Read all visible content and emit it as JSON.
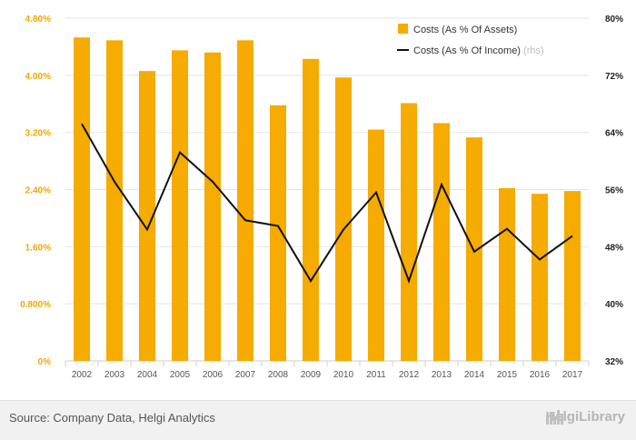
{
  "chart_data": {
    "type": "bar",
    "categories": [
      "2002",
      "2003",
      "2004",
      "2005",
      "2006",
      "2007",
      "2008",
      "2009",
      "2010",
      "2011",
      "2012",
      "2013",
      "2014",
      "2015",
      "2016",
      "2017"
    ],
    "series": [
      {
        "name": "Costs (As % Of Assets)",
        "type": "bar",
        "axis": "left",
        "color": "#f5ab00",
        "values": [
          4.53,
          4.49,
          4.06,
          4.35,
          4.32,
          4.49,
          3.58,
          4.23,
          3.97,
          3.24,
          3.61,
          3.33,
          3.13,
          2.42,
          2.34,
          2.38
        ]
      },
      {
        "name": "Costs (As % Of Income)",
        "name_suffix": "(rhs)",
        "type": "line",
        "axis": "right",
        "color": "#111111",
        "values": [
          65.2,
          57.1,
          50.4,
          61.2,
          57.1,
          51.7,
          50.9,
          43.2,
          50.4,
          55.6,
          43.2,
          56.7,
          47.3,
          50.5,
          46.2,
          49.5
        ]
      }
    ],
    "yleft_ticks": [
      "0%",
      "0.800%",
      "1.60%",
      "2.40%",
      "3.20%",
      "4.00%",
      "4.80%"
    ],
    "yleft_lim": [
      0,
      4.8
    ],
    "yright_ticks": [
      "32%",
      "40%",
      "48%",
      "56%",
      "64%",
      "72%",
      "80%"
    ],
    "yright_lim": [
      32,
      80
    ],
    "grid": true,
    "legend_position": "top-right"
  },
  "footer": {
    "source": "Source: Company Data, Helgi Analytics",
    "brand": "HelgiLibrary"
  },
  "colors": {
    "bar": "#f5ab00",
    "line": "#111111",
    "left_axis_text": "#f5a500",
    "footer_bg": "#f1f1f1"
  }
}
